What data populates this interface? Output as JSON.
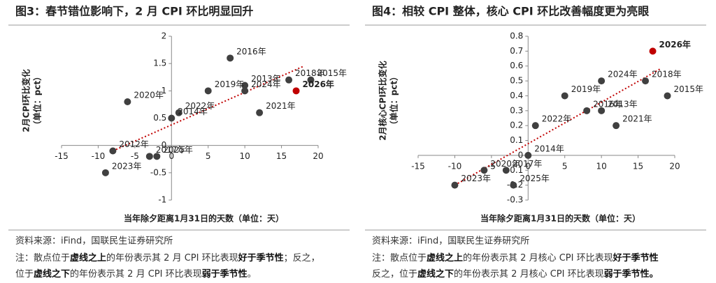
{
  "chart_data": [
    {
      "type": "scatter",
      "title": "图3：春节错位影响下，2 月 CPI 环比明显回升",
      "xlabel": "当年除夕距离1月31日的天数（单位：天）",
      "ylabel": [
        "2月CPI环比变化",
        "（单位：pct）"
      ],
      "labels": [
        "2016年",
        "2018年",
        "2015年",
        "2013年",
        "2026年",
        "2019年",
        "2024年",
        "2022年",
        "2020年",
        "2021年",
        "2014年",
        "2025年",
        "2017年",
        "2012年",
        "2023年"
      ],
      "x": [
        8,
        16,
        19,
        10,
        17,
        5,
        10,
        1,
        -6,
        12,
        0,
        -2,
        -3,
        -8,
        -9
      ],
      "y": [
        1.6,
        1.2,
        1.2,
        1.1,
        1.0,
        1.0,
        1.0,
        0.6,
        0.8,
        0.6,
        0.5,
        -0.2,
        -0.2,
        -0.1,
        -0.5
      ],
      "colors": [
        "#404040",
        "#404040",
        "#404040",
        "#404040",
        "#c00000",
        "#404040",
        "#404040",
        "#404040",
        "#404040",
        "#404040",
        "#404040",
        "#404040",
        "#404040",
        "#404040",
        "#404040"
      ],
      "trendline": {
        "x": [
          -8,
          18
        ],
        "y": [
          -0.1,
          1.45
        ],
        "color": "#c00000"
      },
      "xlim": [
        -15,
        20
      ],
      "xticks": [
        -15,
        -10,
        -5,
        0,
        5,
        10,
        15,
        20
      ],
      "ylim": [
        -1,
        2
      ],
      "yticks": [
        -1,
        -0.5,
        0,
        0.5,
        1,
        1.5,
        2
      ],
      "source": "资料来源：iFind，国联民生证券研究所",
      "note": [
        [
          {
            "text": "注：散点位于",
            "bold": false
          },
          {
            "text": "虚线之上",
            "bold": true
          },
          {
            "text": "的年份表示其 2 月 CPI 环比表现",
            "bold": false
          },
          {
            "text": "好于季节性",
            "bold": true
          },
          {
            "text": "；反之，",
            "bold": false
          }
        ],
        [
          {
            "text": "位于",
            "bold": false
          },
          {
            "text": "虚线之下",
            "bold": true
          },
          {
            "text": "的年份表示其 2 月 CPI 环比表现",
            "bold": false
          },
          {
            "text": "弱于季节性",
            "bold": true
          },
          {
            "text": "。",
            "bold": false
          }
        ]
      ]
    },
    {
      "type": "scatter",
      "title": "图4：相较 CPI 整体，核心 CPI 环比改善幅度更为亮眼",
      "xlabel": "当年除夕距离1月31日的天数（单位：天）",
      "ylabel": [
        "2月核心CPI环比变化",
        "（单位：pct）"
      ],
      "labels": [
        "2026年",
        "2024年",
        "2018年",
        "2015年",
        "2019年",
        "2016年",
        "2013年",
        "2021年",
        "2022年",
        "2014年",
        "2020年",
        "2017年",
        "2025年",
        "2023年"
      ],
      "x": [
        17,
        10,
        16,
        19,
        5,
        8,
        10,
        12,
        1,
        0,
        -6,
        -3,
        -2,
        -10
      ],
      "y": [
        0.7,
        0.5,
        0.5,
        0.4,
        0.4,
        0.3,
        0.3,
        0.2,
        0.2,
        0,
        -0.1,
        -0.1,
        -0.2,
        -0.2
      ],
      "colors": [
        "#c00000",
        "#404040",
        "#404040",
        "#404040",
        "#404040",
        "#404040",
        "#404040",
        "#404040",
        "#404040",
        "#404040",
        "#404040",
        "#404040",
        "#404040",
        "#404040"
      ],
      "trendline": {
        "x": [
          -10,
          18
        ],
        "y": [
          -0.2,
          0.58
        ],
        "color": "#c00000"
      },
      "xlim": [
        -15,
        20
      ],
      "xticks": [
        -15,
        -10,
        -5,
        0,
        5,
        10,
        15,
        20
      ],
      "ylim": [
        -0.3,
        0.8
      ],
      "yticks": [
        -0.3,
        -0.2,
        -0.1,
        0,
        0.1,
        0.2,
        0.3,
        0.4,
        0.5,
        0.6,
        0.7,
        0.8
      ],
      "source": "资料来源：iFind，国联民生证券研究所",
      "note": [
        [
          {
            "text": "注：散点位于",
            "bold": false
          },
          {
            "text": "虚线之上",
            "bold": true
          },
          {
            "text": "的年份表示其 2 月核心 CPI 环比表现",
            "bold": false
          },
          {
            "text": "好于季节性",
            "bold": true
          }
        ],
        [
          {
            "text": "反之，位于",
            "bold": false
          },
          {
            "text": "虚线之下",
            "bold": true
          },
          {
            "text": "的年份表示其 2 月核心 CPI 环比表现",
            "bold": false
          },
          {
            "text": "弱于季节性。",
            "bold": true
          }
        ]
      ]
    }
  ]
}
